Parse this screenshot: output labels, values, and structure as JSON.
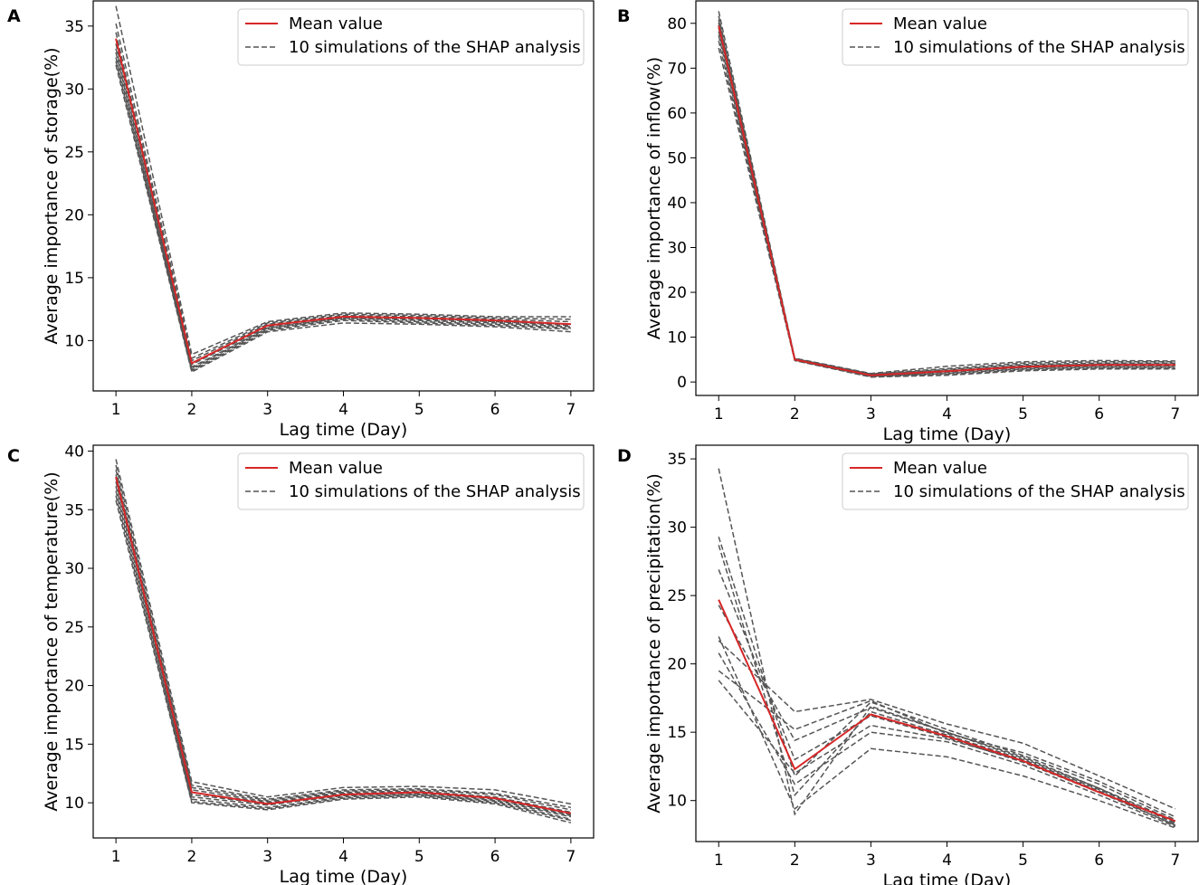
{
  "colors": {
    "mean": "#d62728",
    "simulation": "#555555",
    "frame": "#000000",
    "legend_border": "#cccccc"
  },
  "legend": {
    "mean_label": "Mean value",
    "sim_label": "10 simulations of the SHAP analysis"
  },
  "chart_data": [
    {
      "panel": "A",
      "type": "line",
      "xlabel": "Lag time (Day)",
      "ylabel": "Average importance of storage(%)",
      "x": [
        1,
        2,
        3,
        4,
        5,
        6,
        7
      ],
      "xlim": [
        0.7,
        7.3
      ],
      "ylim": [
        6.0,
        37.0
      ],
      "yticks": [
        10,
        15,
        20,
        25,
        30,
        35
      ],
      "legend_position": "top-right",
      "mean": [
        34.0,
        8.2,
        11.2,
        11.9,
        11.8,
        11.6,
        11.3
      ],
      "simulations": [
        [
          36.6,
          8.9,
          11.5,
          12.2,
          12.1,
          11.9,
          11.9
        ],
        [
          35.2,
          8.6,
          11.4,
          12.1,
          12.0,
          11.8,
          11.7
        ],
        [
          34.5,
          8.4,
          11.3,
          12.0,
          11.9,
          11.7,
          11.5
        ],
        [
          34.0,
          8.2,
          11.2,
          11.9,
          11.8,
          11.6,
          11.3
        ],
        [
          33.6,
          8.1,
          11.1,
          11.9,
          11.8,
          11.5,
          11.3
        ],
        [
          33.2,
          7.9,
          11.0,
          11.8,
          11.7,
          11.5,
          11.2
        ],
        [
          32.9,
          7.8,
          11.0,
          11.8,
          11.6,
          11.4,
          11.1
        ],
        [
          32.5,
          7.7,
          10.9,
          11.7,
          11.5,
          11.3,
          11.0
        ],
        [
          32.2,
          7.6,
          10.8,
          11.6,
          11.4,
          11.2,
          10.9
        ],
        [
          31.9,
          7.5,
          10.7,
          11.4,
          11.3,
          11.1,
          10.7
        ]
      ]
    },
    {
      "panel": "B",
      "type": "line",
      "xlabel": "Lag time (Day)",
      "ylabel": "Average importance of inflow(%)",
      "x": [
        1,
        2,
        3,
        4,
        5,
        6,
        7
      ],
      "xlim": [
        0.7,
        7.3
      ],
      "ylim": [
        -3.0,
        85.0
      ],
      "yticks": [
        0,
        10,
        20,
        30,
        40,
        50,
        60,
        70,
        80
      ],
      "legend_position": "top-right",
      "mean": [
        79.5,
        5.0,
        1.5,
        2.4,
        3.4,
        3.8,
        3.8
      ],
      "simulations": [
        [
          82.7,
          5.3,
          1.9,
          3.5,
          4.5,
          4.8,
          4.7
        ],
        [
          81.6,
          5.2,
          1.8,
          3.0,
          4.2,
          4.5,
          4.5
        ],
        [
          80.8,
          5.1,
          1.7,
          2.8,
          3.9,
          4.2,
          4.2
        ],
        [
          80.2,
          5.1,
          1.6,
          2.6,
          3.7,
          4.0,
          4.0
        ],
        [
          79.6,
          5.0,
          1.5,
          2.4,
          3.5,
          3.9,
          3.8
        ],
        [
          79.0,
          5.0,
          1.5,
          2.3,
          3.3,
          3.7,
          3.7
        ],
        [
          78.2,
          4.9,
          1.4,
          2.1,
          3.1,
          3.5,
          3.5
        ],
        [
          77.3,
          4.9,
          1.3,
          1.9,
          2.9,
          3.3,
          3.3
        ],
        [
          76.1,
          4.8,
          1.2,
          1.7,
          2.7,
          3.1,
          3.1
        ],
        [
          74.5,
          4.8,
          1.1,
          1.5,
          2.5,
          2.9,
          2.9
        ]
      ]
    },
    {
      "panel": "C",
      "type": "line",
      "xlabel": "Lag time (Day)",
      "ylabel": "Average importance of temperature(%)",
      "x": [
        1,
        2,
        3,
        4,
        5,
        6,
        7
      ],
      "xlim": [
        0.7,
        7.3
      ],
      "ylim": [
        7.0,
        40.5
      ],
      "yticks": [
        10,
        15,
        20,
        25,
        30,
        35,
        40
      ],
      "legend_position": "top-right",
      "mean": [
        37.8,
        10.9,
        9.9,
        10.7,
        10.9,
        10.4,
        9.1
      ],
      "simulations": [
        [
          39.3,
          11.8,
          10.5,
          11.3,
          11.4,
          11.1,
          9.9
        ],
        [
          38.8,
          11.5,
          10.3,
          11.1,
          11.2,
          10.8,
          9.6
        ],
        [
          38.4,
          11.3,
          10.2,
          11.0,
          11.1,
          10.7,
          9.4
        ],
        [
          38.0,
          11.1,
          10.1,
          10.9,
          11.0,
          10.5,
          9.2
        ],
        [
          37.7,
          10.9,
          10.0,
          10.8,
          10.9,
          10.4,
          9.0
        ],
        [
          37.4,
          10.7,
          9.9,
          10.7,
          10.8,
          10.3,
          8.9
        ],
        [
          37.0,
          10.5,
          9.8,
          10.6,
          10.7,
          10.2,
          8.8
        ],
        [
          36.6,
          10.3,
          9.6,
          10.5,
          10.7,
          10.1,
          8.6
        ],
        [
          36.2,
          10.1,
          9.5,
          10.4,
          10.6,
          10.0,
          8.5
        ],
        [
          35.8,
          10.0,
          9.4,
          10.3,
          10.5,
          9.9,
          8.3
        ]
      ]
    },
    {
      "panel": "D",
      "type": "line",
      "xlabel": "Lag time (Day)",
      "ylabel": "Average importance of precipitation(%)",
      "x": [
        1,
        2,
        3,
        4,
        5,
        6,
        7
      ],
      "xlim": [
        0.7,
        7.3
      ],
      "ylim": [
        7.0,
        36.0
      ],
      "yticks": [
        10,
        15,
        20,
        25,
        30,
        35
      ],
      "legend_position": "top-right",
      "mean": [
        24.7,
        12.3,
        16.3,
        14.7,
        12.9,
        10.6,
        8.5
      ],
      "simulations": [
        [
          34.3,
          9.0,
          16.9,
          15.0,
          13.2,
          10.9,
          8.3
        ],
        [
          29.3,
          11.8,
          17.2,
          15.2,
          13.3,
          11.2,
          8.6
        ],
        [
          28.7,
          10.4,
          16.5,
          14.8,
          13.0,
          10.8,
          8.4
        ],
        [
          26.9,
          13.0,
          16.2,
          14.6,
          12.8,
          10.6,
          8.2
        ],
        [
          24.3,
          14.4,
          16.8,
          15.0,
          13.1,
          10.9,
          8.5
        ],
        [
          22.0,
          9.4,
          13.8,
          13.2,
          11.8,
          10.0,
          8.0
        ],
        [
          21.7,
          16.5,
          17.4,
          15.6,
          14.2,
          11.8,
          9.4
        ],
        [
          20.8,
          11.2,
          15.0,
          14.3,
          12.6,
          10.4,
          8.1
        ],
        [
          19.5,
          15.2,
          17.3,
          14.9,
          13.5,
          11.4,
          8.8
        ],
        [
          18.8,
          12.0,
          15.5,
          14.5,
          12.9,
          10.7,
          8.2
        ]
      ]
    }
  ]
}
